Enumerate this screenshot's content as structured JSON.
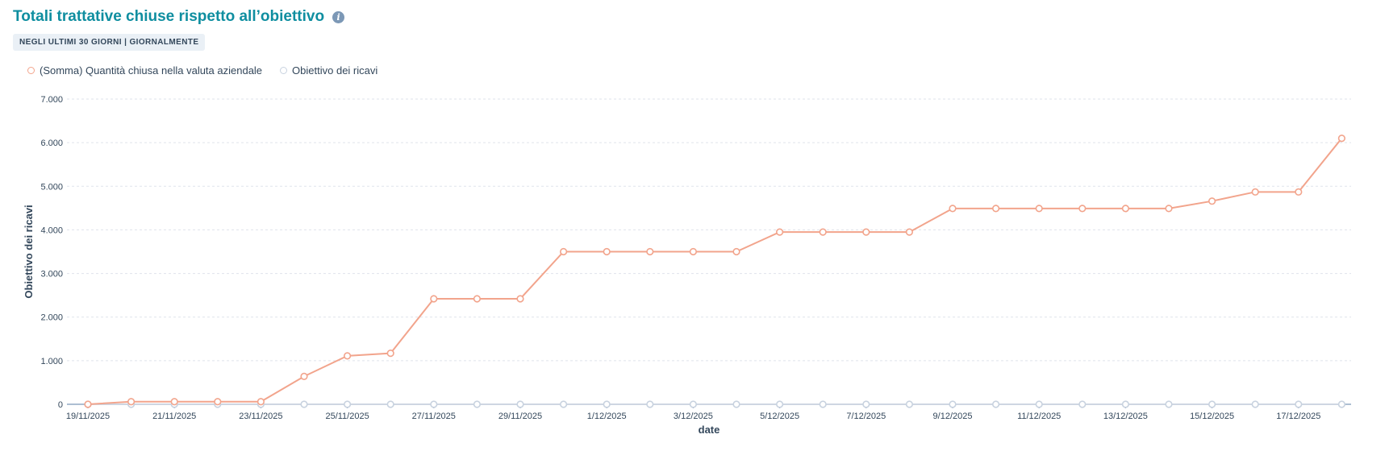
{
  "header": {
    "title": "Totali trattative chiuse rispetto all’obiettivo",
    "info_icon": "info-icon",
    "badge": "NEGLI ULTIMI 30 GIORNI | GIORNALMENTE"
  },
  "legend": {
    "items": [
      {
        "label": "(Somma) Quantità chiusa nella valuta aziendale",
        "color": "#f2a48c"
      },
      {
        "label": "Obiettivo dei ricavi",
        "color": "#c8d2df"
      }
    ]
  },
  "chart_data": {
    "type": "line",
    "xlabel": "date",
    "ylabel": "Obiettivo dei ricavi",
    "ylim": [
      0,
      7000
    ],
    "yticks": [
      "0",
      "1.000",
      "2.000",
      "3.000",
      "4.000",
      "5.000",
      "6.000",
      "7.000"
    ],
    "x": [
      "19/11/2025",
      "20/11/2025",
      "21/11/2025",
      "22/11/2025",
      "23/11/2025",
      "24/11/2025",
      "25/11/2025",
      "26/11/2025",
      "27/11/2025",
      "28/11/2025",
      "29/11/2025",
      "30/11/2025",
      "1/12/2025",
      "2/12/2025",
      "3/12/2025",
      "4/12/2025",
      "5/12/2025",
      "6/12/2025",
      "7/12/2025",
      "8/12/2025",
      "9/12/2025",
      "10/12/2025",
      "11/12/2025",
      "12/12/2025",
      "13/12/2025",
      "14/12/2025",
      "15/12/2025",
      "16/12/2025",
      "17/12/2025",
      "18/12/2025"
    ],
    "xticks": [
      "19/11/2025",
      "21/11/2025",
      "23/11/2025",
      "25/11/2025",
      "27/11/2025",
      "29/11/2025",
      "1/12/2025",
      "3/12/2025",
      "5/12/2025",
      "7/12/2025",
      "9/12/2025",
      "11/12/2025",
      "13/12/2025",
      "15/12/2025",
      "17/12/2025"
    ],
    "grid": true,
    "legend_position": "top-left",
    "series": [
      {
        "name": "(Somma) Quantità chiusa nella valuta aziendale",
        "color": "#f2a48c",
        "values": [
          0,
          60,
          60,
          60,
          60,
          640,
          1110,
          1170,
          2420,
          2420,
          2420,
          3500,
          3500,
          3500,
          3500,
          3500,
          3950,
          3950,
          3950,
          3950,
          4490,
          4490,
          4490,
          4490,
          4490,
          4490,
          4660,
          4870,
          4870,
          6100
        ]
      },
      {
        "name": "Obiettivo dei ricavi",
        "color": "#c8d2df",
        "values": [
          0,
          0,
          0,
          0,
          0,
          0,
          0,
          0,
          0,
          0,
          0,
          0,
          0,
          0,
          0,
          0,
          0,
          0,
          0,
          0,
          0,
          0,
          0,
          0,
          0,
          0,
          0,
          0,
          0,
          0
        ]
      }
    ]
  }
}
